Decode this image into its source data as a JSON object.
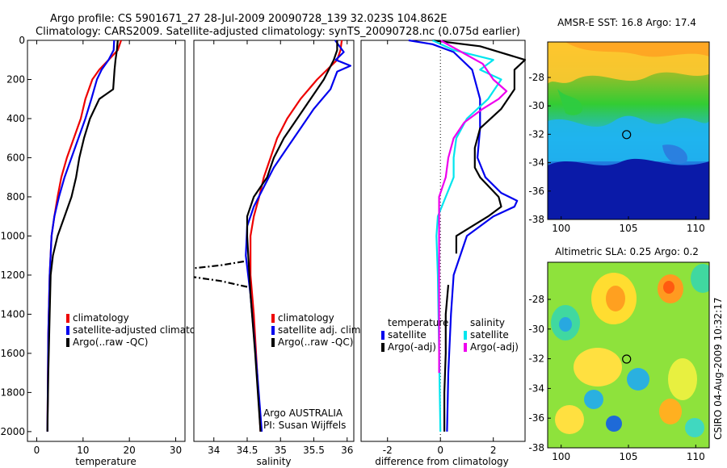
{
  "header": {
    "line1": "Argo profile: CS 5901671_27 28-Jul-2009 20090728_139 32.023S 104.862E",
    "line2": "Climatology: CARS2009. Satellite-adjusted climatology: synTS_20090728.nc (0.075d earlier)"
  },
  "colors": {
    "climatology": "#ee0000",
    "satellite": "#0000ee",
    "argo": "#000000",
    "sal_satellite": "#00e5ee",
    "sal_argo": "#ee00ee"
  },
  "side_label": "CSIRO 04-Aug-2009 10:32:17",
  "chart_data": [
    {
      "type": "line",
      "id": "temperature",
      "xlabel": "temperature",
      "xlim": [
        -2,
        32
      ],
      "ylim": [
        0,
        2050
      ],
      "xticks": [
        0,
        10,
        20,
        30
      ],
      "yticks": [
        0,
        200,
        400,
        600,
        800,
        1000,
        1200,
        1400,
        1600,
        1800,
        2000
      ],
      "legend_placement": "lower-middle",
      "series": [
        {
          "name": "climatology",
          "color": "#ee0000",
          "x": [
            18.2,
            17.5,
            15.5,
            13.5,
            12.0,
            10.5,
            9.5,
            8.0,
            6.5,
            5.3,
            4.5,
            3.8,
            3.2,
            2.8,
            2.5,
            2.3
          ],
          "y": [
            0,
            50,
            100,
            150,
            200,
            300,
            400,
            500,
            600,
            700,
            800,
            900,
            1000,
            1200,
            1500,
            2000
          ]
        },
        {
          "name": "satellite-adjusted climatology",
          "color": "#0000ee",
          "x": [
            16.7,
            16.6,
            15.5,
            14.0,
            13.0,
            11.8,
            10.5,
            9.0,
            7.5,
            6.0,
            4.8,
            3.8,
            3.2,
            2.8,
            2.5,
            2.3
          ],
          "y": [
            0,
            50,
            100,
            150,
            200,
            300,
            400,
            500,
            600,
            700,
            800,
            900,
            1000,
            1200,
            1500,
            2000
          ]
        },
        {
          "name": "Argo(..raw -QC)",
          "color": "#000000",
          "x": [
            17.5,
            17.3,
            17.0,
            16.8,
            16.5,
            13.5,
            11.5,
            10.2,
            9.2,
            8.5,
            7.5,
            6.0,
            4.5,
            3.5,
            3.0,
            2.8,
            2.5,
            2.3
          ],
          "y": [
            0,
            50,
            100,
            150,
            250,
            300,
            400,
            500,
            600,
            700,
            800,
            900,
            1000,
            1100,
            1200,
            1400,
            1700,
            2000
          ]
        }
      ],
      "legend": [
        "climatology",
        "satellite-adjusted climatolog",
        "Argo(..raw -QC)"
      ]
    },
    {
      "type": "line",
      "id": "salinity",
      "xlabel": "salinity",
      "xlim": [
        33.7,
        36.1
      ],
      "ylim": [
        0,
        2050
      ],
      "xticks": [
        34,
        34.5,
        35,
        35.5,
        36
      ],
      "xtick_labels": [
        "34",
        "34.5",
        "35",
        "35.5",
        "36"
      ],
      "legend_placement": "lower-middle",
      "series": [
        {
          "name": "climatology",
          "color": "#ee0000",
          "x": [
            35.92,
            35.9,
            35.85,
            35.7,
            35.55,
            35.3,
            35.1,
            34.95,
            34.85,
            34.75,
            34.68,
            34.6,
            34.55,
            34.55,
            34.6,
            34.65,
            34.7
          ],
          "y": [
            0,
            50,
            100,
            150,
            200,
            300,
            400,
            500,
            600,
            700,
            800,
            900,
            1000,
            1200,
            1400,
            1700,
            2000
          ]
        },
        {
          "name": "satellite adj. clim.",
          "color": "#0000ee",
          "x": [
            35.82,
            35.95,
            35.83,
            36.05,
            35.85,
            35.75,
            35.5,
            35.3,
            35.1,
            34.9,
            34.75,
            34.6,
            34.5,
            34.48,
            34.55,
            34.65,
            34.72
          ],
          "y": [
            0,
            60,
            100,
            130,
            160,
            250,
            350,
            450,
            550,
            650,
            750,
            850,
            950,
            1100,
            1300,
            1700,
            2000
          ]
        },
        {
          "name": "Argo(..raw -QC)",
          "color": "#000000",
          "x": [
            35.85,
            35.85,
            35.8,
            35.65,
            35.45,
            35.25,
            35.05,
            34.9,
            34.8,
            34.6,
            34.5,
            34.5,
            34.55,
            34.62,
            34.7
          ],
          "y": [
            0,
            50,
            100,
            200,
            300,
            400,
            500,
            600,
            700,
            800,
            900,
            1000,
            1300,
            1600,
            2000
          ]
        },
        {
          "name": "Argo spike",
          "color": "#000000",
          "dashed": true,
          "x": [
            34.45,
            34.1,
            33.7
          ],
          "y": [
            1130,
            1150,
            1165
          ]
        },
        {
          "name": "Argo spike 2",
          "color": "#000000",
          "dashed": true,
          "x": [
            34.5,
            34.1,
            33.7
          ],
          "y": [
            1260,
            1230,
            1210
          ]
        }
      ],
      "legend": [
        "climatology",
        "satellite adj. clim.",
        "Argo(..raw -QC)"
      ],
      "annotation": [
        "Argo AUSTRALIA",
        "PI: Susan Wijffels"
      ]
    },
    {
      "type": "line",
      "id": "difference",
      "xlabel": "difference from climatology",
      "xlim": [
        -3,
        3.2
      ],
      "ylim": [
        0,
        2050
      ],
      "xticks": [
        -2,
        0,
        2
      ],
      "reference_line": 0,
      "legend_placement": "lower-middle",
      "legend_groups": [
        {
          "title": "temperature",
          "items": [
            "satellite",
            "Argo(-adj)"
          ]
        },
        {
          "title": "salinity",
          "items": [
            "satellite",
            "Argo(-adj)"
          ]
        }
      ],
      "series": [
        {
          "name": "temperature satellite",
          "color": "#0000ee",
          "x": [
            -1.2,
            -0.3,
            0.5,
            1.2,
            1.5,
            1.5,
            1.4,
            1.7,
            2.3,
            2.9,
            2.8,
            2.0,
            1.0,
            0.5,
            0.4,
            0.3,
            0.25
          ],
          "y": [
            0,
            20,
            60,
            150,
            300,
            450,
            600,
            700,
            780,
            820,
            850,
            900,
            1000,
            1200,
            1400,
            1700,
            2000
          ]
        },
        {
          "name": "temperature Argo(-adj)",
          "color": "#000000",
          "x": [
            -0.3,
            1.5,
            3.2,
            2.8,
            2.8,
            2.3,
            1.5,
            1.3,
            1.3,
            1.5,
            2.2,
            2.3,
            1.8,
            1.2,
            0.6,
            0.6
          ],
          "y": [
            0,
            30,
            100,
            150,
            250,
            350,
            450,
            550,
            650,
            700,
            800,
            850,
            900,
            950,
            1000,
            1090
          ]
        },
        {
          "name": "temperature Argo(-adj) deep",
          "color": "#000000",
          "x": [
            0.3,
            0.2,
            0.2,
            0.15,
            0.15
          ],
          "y": [
            1250,
            1400,
            1600,
            1800,
            2000
          ]
        },
        {
          "name": "salinity satellite",
          "color": "#00e5ee",
          "x": [
            -0.3,
            0.5,
            2.0,
            1.5,
            2.3,
            1.8,
            1.0,
            0.6,
            0.5,
            0.5,
            0.2,
            -0.1,
            -0.15,
            -0.1,
            0.0
          ],
          "y": [
            0,
            50,
            100,
            150,
            200,
            300,
            400,
            500,
            600,
            700,
            800,
            900,
            1000,
            1200,
            2000
          ]
        },
        {
          "name": "salinity Argo(-adj)",
          "color": "#ee00ee",
          "x": [
            0.0,
            0.8,
            1.6,
            2.0,
            2.5,
            2.2,
            1.6,
            0.9,
            0.5,
            0.3,
            0.2,
            -0.05,
            -0.05,
            -0.05,
            -0.05
          ],
          "y": [
            0,
            60,
            120,
            200,
            260,
            300,
            350,
            420,
            500,
            600,
            700,
            800,
            900,
            1000,
            1700
          ]
        }
      ]
    },
    {
      "type": "heatmap",
      "id": "sst-map",
      "title": "AMSR-E SST: 16.8 Argo: 17.4",
      "xlim": [
        99,
        111
      ],
      "ylim": [
        -38,
        -25.5
      ],
      "xticks": [
        100,
        105,
        110
      ],
      "yticks": [
        -28,
        -30,
        -32,
        -34,
        -36,
        -38
      ],
      "marker": {
        "lon": 104.862,
        "lat": -32.023
      }
    },
    {
      "type": "heatmap",
      "id": "sla-map",
      "title": "Altimetric SLA: 0.25 Argo: 0.2",
      "xlim": [
        99,
        111
      ],
      "ylim": [
        -38,
        -25.5
      ],
      "xticks": [
        100,
        105,
        110
      ],
      "yticks": [
        -28,
        -30,
        -32,
        -34,
        -36,
        -38
      ],
      "marker": {
        "lon": 104.862,
        "lat": -32.023
      }
    }
  ]
}
